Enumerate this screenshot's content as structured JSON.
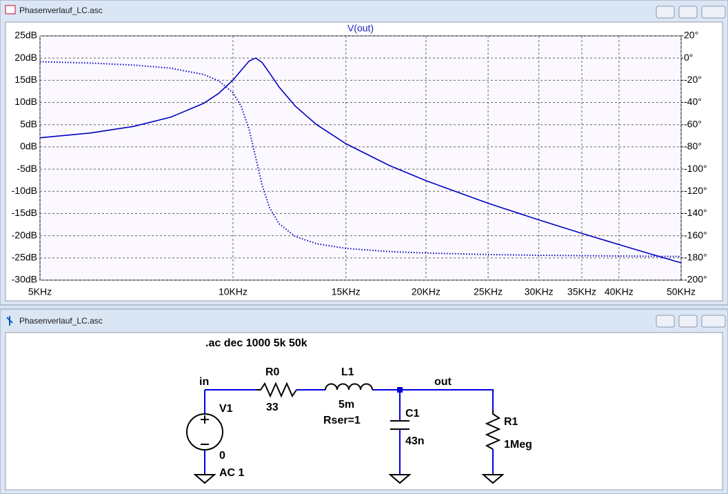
{
  "plot_window": {
    "title": "Phasenverlauf_LC.asc"
  },
  "chart_data": {
    "type": "line",
    "title": "V(out)",
    "xscale": "log",
    "grid": true,
    "x": [
      5000,
      6000,
      7000,
      8000,
      9000,
      9500,
      10000,
      10300,
      10600,
      10850,
      11100,
      11400,
      11800,
      12500,
      13500,
      15000,
      17500,
      20000,
      25000,
      30000,
      35000,
      40000,
      45000,
      50000
    ],
    "series": [
      {
        "color": "#0000c0",
        "style": "solid",
        "values": [
          2.06,
          3.14,
          4.62,
          6.7,
          9.81,
          12.05,
          15.05,
          17.25,
          19.35,
          20.03,
          19.03,
          16.66,
          13.48,
          9.22,
          5.02,
          0.72,
          -4.13,
          -7.61,
          -12.69,
          -16.45,
          -19.47,
          -22.0,
          -24.19,
          -26.12
        ]
      },
      {
        "color": "#0000c0",
        "style": "dotted",
        "axis": "y2",
        "values": [
          -3.3,
          -4.5,
          -6.3,
          -9.1,
          -14.8,
          -20.5,
          -31.3,
          -43.6,
          -64.6,
          -89.6,
          -114.2,
          -134.6,
          -149.2,
          -160.6,
          -167.2,
          -171.4,
          -174.3,
          -175.6,
          -177.0,
          -177.6,
          -178.0,
          -178.3,
          -178.5,
          -178.7
        ]
      }
    ],
    "xlim": [
      5000,
      50000
    ],
    "xticks": [
      {
        "value": 5000,
        "label": "5KHz"
      },
      {
        "value": 10000,
        "label": "10KHz"
      },
      {
        "value": 15000,
        "label": "15KHz"
      },
      {
        "value": 20000,
        "label": "20KHz"
      },
      {
        "value": 25000,
        "label": "25KHz"
      },
      {
        "value": 30000,
        "label": "30KHz"
      },
      {
        "value": 35000,
        "label": "35KHz"
      },
      {
        "value": 40000,
        "label": "40KHz"
      },
      {
        "value": 50000,
        "label": "50KHz"
      }
    ],
    "ylim": [
      -30,
      25
    ],
    "yticks": [
      {
        "value": 25,
        "label": "25dB"
      },
      {
        "value": 20,
        "label": "20dB"
      },
      {
        "value": 15,
        "label": "15dB"
      },
      {
        "value": 10,
        "label": "10dB"
      },
      {
        "value": 5,
        "label": "5dB"
      },
      {
        "value": 0,
        "label": "0dB"
      },
      {
        "value": -5,
        "label": "-5dB"
      },
      {
        "value": -10,
        "label": "-10dB"
      },
      {
        "value": -15,
        "label": "-15dB"
      },
      {
        "value": -20,
        "label": "-20dB"
      },
      {
        "value": -25,
        "label": "-25dB"
      },
      {
        "value": -30,
        "label": "-30dB"
      }
    ],
    "y2lim": [
      -200,
      20
    ],
    "y2ticks": [
      {
        "value": 20,
        "label": "20°"
      },
      {
        "value": 0,
        "label": "0°"
      },
      {
        "value": -20,
        "label": "-20°"
      },
      {
        "value": -40,
        "label": "-40°"
      },
      {
        "value": -60,
        "label": "-60°"
      },
      {
        "value": -80,
        "label": "-80°"
      },
      {
        "value": -100,
        "label": "-100°"
      },
      {
        "value": -120,
        "label": "-120°"
      },
      {
        "value": -140,
        "label": "-140°"
      },
      {
        "value": -160,
        "label": "-160°"
      },
      {
        "value": -180,
        "label": "-180°"
      },
      {
        "value": -200,
        "label": "-200°"
      }
    ]
  },
  "schematic_window": {
    "title": "Phasenverlauf_LC.asc",
    "directive": ".ac dec 1000 5k 50k",
    "nets": {
      "in": "in",
      "out": "out"
    },
    "V1": {
      "name": "V1",
      "value": "0",
      "ac": "AC 1"
    },
    "R0": {
      "name": "R0",
      "value": "33"
    },
    "L1": {
      "name": "L1",
      "value": "5m",
      "rser": "Rser=1"
    },
    "C1": {
      "name": "C1",
      "value": "43n"
    },
    "R1": {
      "name": "R1",
      "value": "1Meg"
    }
  }
}
